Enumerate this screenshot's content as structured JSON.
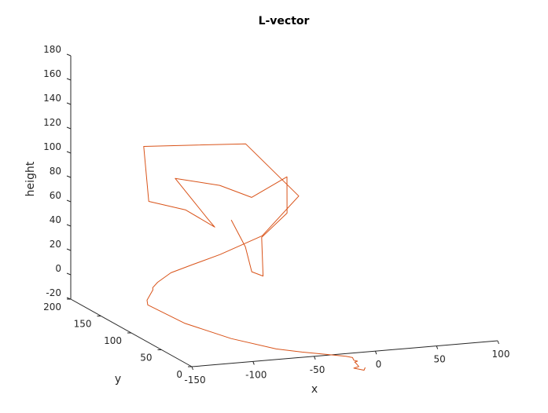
{
  "chart_data": {
    "type": "line",
    "title": "L-vector",
    "xlabel": "x",
    "ylabel": "y",
    "zlabel": "height",
    "xlim": [
      -150,
      100
    ],
    "ylim": [
      0,
      200
    ],
    "zlim": [
      -20,
      180
    ],
    "x_ticks": [
      "-150",
      "-100",
      "-50",
      "0",
      "50",
      "100"
    ],
    "y_ticks": [
      "0",
      "50",
      "100",
      "150",
      "200"
    ],
    "z_ticks": [
      "-20",
      "0",
      "20",
      "40",
      "60",
      "80",
      "100",
      "120",
      "140",
      "160",
      "180"
    ],
    "color": "#d95319",
    "grid": false,
    "projection": "3d",
    "series": [
      {
        "points_xyz": [
          [
            -90.2,
            55.8,
            80.0
          ],
          [
            -83.6,
            45.7,
            60.1
          ],
          [
            -79.6,
            43.3,
            40.0
          ],
          [
            -77.1,
            29.6,
            40.0
          ],
          [
            -75.4,
            35.4,
            70.1
          ],
          [
            -57.3,
            30.0,
            90.0
          ],
          [
            -50.0,
            45.0,
            115.0
          ],
          [
            -70.3,
            62.4,
            95.0
          ],
          [
            -85.4,
            84.5,
            100.0
          ],
          [
            -108.1,
            112.2,
            100.0
          ],
          [
            -97.7,
            79.5,
            75.0
          ],
          [
            -97.0,
            69.3,
            71.0
          ],
          [
            -110.0,
            91.0,
            80.1
          ],
          [
            -125.0,
            121.7,
            79.9
          ],
          [
            -105.2,
            170.0,
            110.0
          ],
          [
            -20.3,
            173.2,
            104.0
          ],
          [
            -11.9,
            102.5,
            80.0
          ],
          [
            -49.6,
            86.6,
            55.0
          ],
          [
            -80.4,
            94.1,
            40.1
          ],
          [
            -97.0,
            105.6,
            30.1
          ],
          [
            -107.3,
            120.8,
            20.0
          ],
          [
            -113.2,
            130.9,
            9.9
          ],
          [
            -108.2,
            149.1,
            0.0
          ],
          [
            -103.1,
            159.1,
            -5.0
          ],
          [
            -104.9,
            165.1,
            -15.0
          ],
          [
            -105.8,
            162.2,
            -18.0
          ],
          [
            -89.1,
            135.3,
            -27.0
          ],
          [
            -64.6,
            107.6,
            -34.0
          ],
          [
            -41.3,
            80.5,
            -37.0
          ],
          [
            -28.4,
            63.6,
            -36.0
          ],
          [
            -5.7,
            37.0,
            -34.0
          ],
          [
            -2.2,
            33.2,
            -34.3
          ],
          [
            -1.1,
            33.3,
            -36.6
          ],
          [
            0.7,
            30.9,
            -36.9
          ],
          [
            -0.9,
            32.3,
            -37.9
          ],
          [
            -0.3,
            31.9,
            -38.5
          ],
          [
            0.9,
            29.1,
            -40.8
          ],
          [
            -2.1,
            31.4,
            -42.5
          ],
          [
            3.3,
            25.4,
            -43.0
          ],
          [
            4.7,
            26.2,
            -41.1
          ]
        ]
      }
    ]
  }
}
